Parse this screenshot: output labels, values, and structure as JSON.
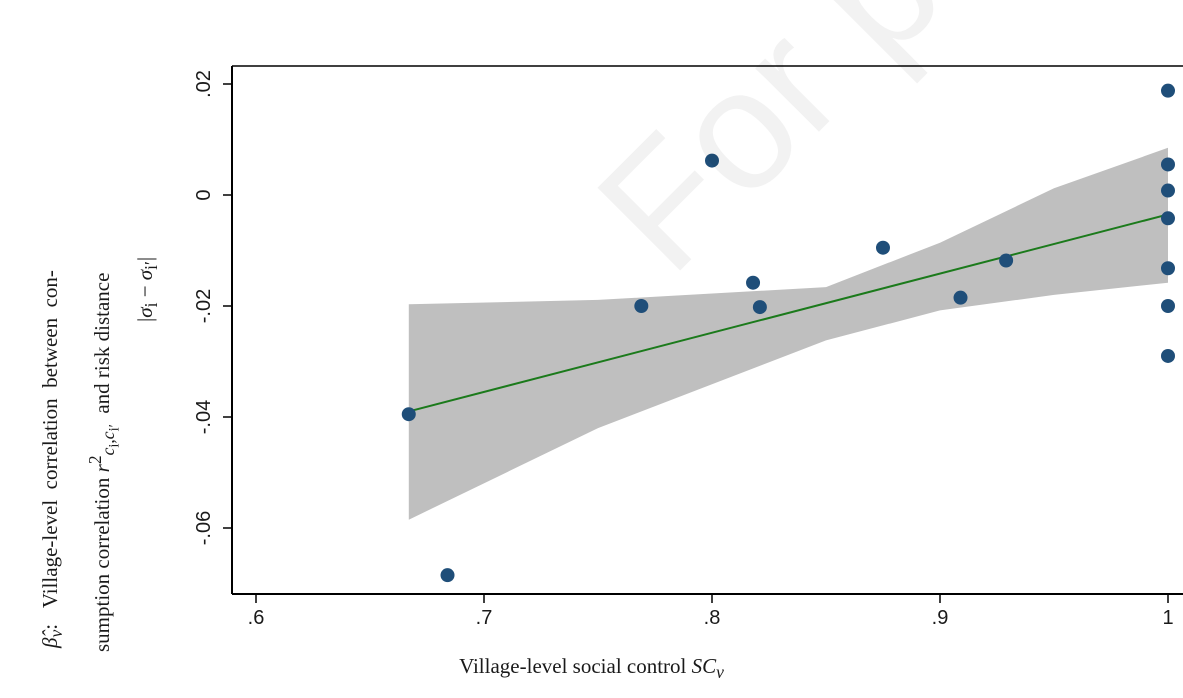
{
  "watermark": "For peer review",
  "y_label_lines": [
    "β̂v:  Village-level  correlation  between  con-",
    "sumption correlation r²ci,ci′  and risk distance",
    "|σi − σi′|"
  ],
  "x_label": "Village-level social control SCv",
  "colors": {
    "point": "#1f4e79",
    "fit_line": "#1b7a1b",
    "ci_band": "#bfbfbf",
    "axis": "#000000"
  },
  "chart_data": {
    "type": "scatter",
    "title": "",
    "xlabel": "Village-level social control SCv",
    "ylabel": "β̂v: Village-level correlation between consumption correlation r²ci,ci′ and risk distance |σi − σi′|",
    "xlim": [
      0.6,
      1.0
    ],
    "ylim": [
      -0.07,
      0.022
    ],
    "x_ticks": [
      0.6,
      0.7,
      0.8,
      0.9,
      1.0
    ],
    "x_tick_labels": [
      ".6",
      ".7",
      ".8",
      ".9",
      "1"
    ],
    "y_ticks": [
      -0.06,
      -0.04,
      -0.02,
      0,
      0.02
    ],
    "y_tick_labels": [
      "-.06",
      "-.04",
      "-.02",
      "0",
      ".02"
    ],
    "grid": false,
    "points": [
      {
        "x": 0.667,
        "y": -0.0395
      },
      {
        "x": 0.684,
        "y": -0.0685
      },
      {
        "x": 0.769,
        "y": -0.02
      },
      {
        "x": 0.8,
        "y": 0.0062
      },
      {
        "x": 0.818,
        "y": -0.0158
      },
      {
        "x": 0.821,
        "y": -0.0202
      },
      {
        "x": 0.875,
        "y": -0.0095
      },
      {
        "x": 0.909,
        "y": -0.0185
      },
      {
        "x": 0.929,
        "y": -0.0118
      },
      {
        "x": 1.0,
        "y": 0.0188
      },
      {
        "x": 1.0,
        "y": 0.0055
      },
      {
        "x": 1.0,
        "y": 0.0008
      },
      {
        "x": 1.0,
        "y": -0.0042
      },
      {
        "x": 1.0,
        "y": -0.0132
      },
      {
        "x": 1.0,
        "y": -0.02
      },
      {
        "x": 1.0,
        "y": -0.029
      }
    ],
    "fit_line": [
      {
        "x": 0.667,
        "y": -0.039
      },
      {
        "x": 1.0,
        "y": -0.0035
      }
    ],
    "confidence_band": [
      {
        "x": 0.667,
        "lo": -0.0585,
        "hi": -0.0197
      },
      {
        "x": 0.75,
        "lo": -0.042,
        "hi": -0.0189
      },
      {
        "x": 0.85,
        "lo": -0.0262,
        "hi": -0.0166
      },
      {
        "x": 0.9,
        "lo": -0.0208,
        "hi": -0.0086
      },
      {
        "x": 0.95,
        "lo": -0.018,
        "hi": 0.0012
      },
      {
        "x": 1.0,
        "lo": -0.0158,
        "hi": 0.0085
      }
    ]
  }
}
